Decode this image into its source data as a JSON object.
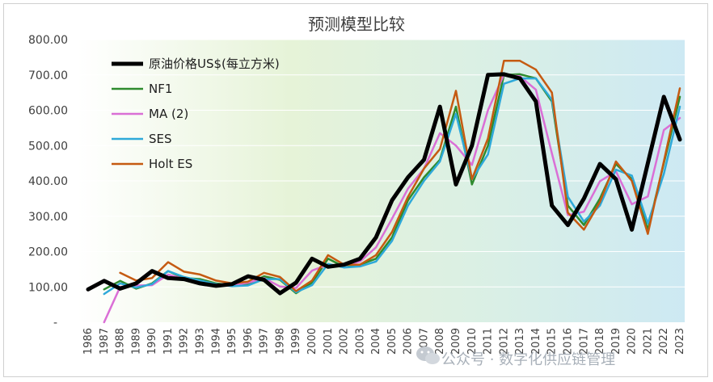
{
  "watermark": {
    "text": "公众号 · 数字化供应链管理",
    "icon": "wechat-icon"
  },
  "chart_data": {
    "type": "line",
    "title": "预测模型比较",
    "xlabel": "",
    "ylabel": "",
    "ylim": [
      0,
      800
    ],
    "y_ticks": [
      "-",
      "100.00",
      "200.00",
      "300.00",
      "400.00",
      "500.00",
      "600.00",
      "700.00",
      "800.00"
    ],
    "grid": true,
    "legend_position": "top-left",
    "x": [
      "1986",
      "1987",
      "1988",
      "1989",
      "1990",
      "1991",
      "1992",
      "1993",
      "1994",
      "1995",
      "1996",
      "1997",
      "1998",
      "1999",
      "2000",
      "2001",
      "2002",
      "2003",
      "2004",
      "2005",
      "2006",
      "2007",
      "2008",
      "2009",
      "2010",
      "2011",
      "2012",
      "2013",
      "2014",
      "2015",
      "2016",
      "2017",
      "2018",
      "2019",
      "2020",
      "2021",
      "2022",
      "2023"
    ],
    "series": [
      {
        "name": "原油价格US$(每立方米)",
        "color": "#000000",
        "width": 5,
        "values": [
          93,
          117,
          95,
          110,
          145,
          125,
          122,
          110,
          103,
          108,
          130,
          120,
          82,
          112,
          180,
          157,
          163,
          180,
          240,
          345,
          410,
          460,
          610,
          390,
          500,
          700,
          702,
          690,
          625,
          330,
          275,
          350,
          448,
          405,
          262,
          450,
          638,
          517
        ]
      },
      {
        "name": "NF1",
        "color": "#2e8b2e",
        "width": 2.5,
        "values": [
          null,
          93,
          117,
          95,
          110,
          145,
          125,
          122,
          110,
          103,
          108,
          130,
          120,
          82,
          112,
          180,
          157,
          163,
          180,
          240,
          345,
          410,
          460,
          610,
          390,
          500,
          700,
          702,
          690,
          625,
          330,
          275,
          350,
          448,
          405,
          262,
          450,
          638
        ]
      },
      {
        "name": "MA (2)",
        "color": "#da6fd6",
        "width": 2.5,
        "values": [
          null,
          0,
          100,
          104,
          105,
          135,
          123,
          116,
          106,
          105,
          112,
          125,
          101,
          97,
          146,
          163,
          160,
          172,
          212,
          293,
          378,
          435,
          535,
          500,
          445,
          600,
          701,
          696,
          658,
          478,
          303,
          313,
          399,
          427,
          334,
          356,
          544,
          578
        ]
      },
      {
        "name": "SES",
        "color": "#2ea9d9",
        "width": 2.5,
        "values": [
          null,
          80,
          110,
          98,
          108,
          145,
          128,
          118,
          108,
          102,
          104,
          122,
          122,
          85,
          105,
          165,
          155,
          158,
          172,
          230,
          330,
          400,
          455,
          590,
          405,
          475,
          675,
          690,
          690,
          630,
          355,
          285,
          330,
          432,
          415,
          280,
          420,
          610
        ]
      },
      {
        "name": "Holt ES",
        "color": "#c55a11",
        "width": 2.5,
        "values": [
          null,
          null,
          140,
          118,
          125,
          170,
          143,
          135,
          118,
          110,
          115,
          140,
          128,
          88,
          118,
          190,
          163,
          163,
          190,
          255,
          355,
          435,
          490,
          655,
          405,
          520,
          740,
          740,
          715,
          650,
          310,
          262,
          340,
          455,
          400,
          250,
          455,
          662
        ]
      }
    ]
  }
}
